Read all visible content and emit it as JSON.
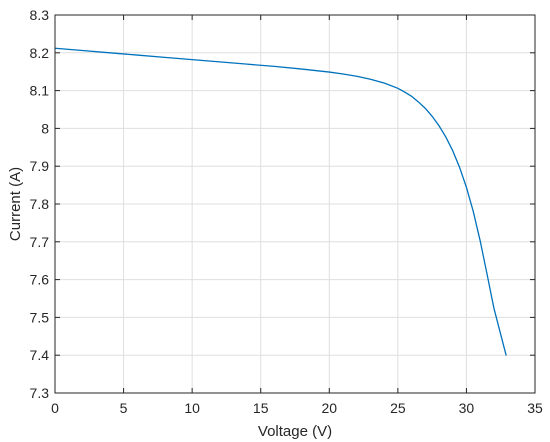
{
  "chart_data": {
    "type": "line",
    "title": "",
    "xlabel": "Voltage (V)",
    "ylabel": "Current (A)",
    "xlim": [
      0,
      35
    ],
    "ylim": [
      7.3,
      8.3
    ],
    "xticks": [
      0,
      5,
      10,
      15,
      20,
      25,
      30,
      35
    ],
    "yticks": [
      7.3,
      7.4,
      7.5,
      7.6,
      7.7,
      7.8,
      7.9,
      8,
      8.1,
      8.2,
      8.3
    ],
    "xtick_labels": [
      "0",
      "5",
      "10",
      "15",
      "20",
      "25",
      "30",
      "35"
    ],
    "ytick_labels": [
      "7.3",
      "7.4",
      "7.5",
      "7.6",
      "7.7",
      "7.8",
      "7.9",
      "8",
      "8.1",
      "8.2",
      "8.3"
    ],
    "grid": true,
    "line_color": "#0072bd",
    "series": [
      {
        "x": [
          0,
          2,
          4,
          6,
          8,
          10,
          12,
          14,
          16,
          18,
          20,
          21,
          22,
          23,
          24,
          25,
          25.5,
          26,
          26.5,
          27,
          27.5,
          28,
          28.5,
          29,
          29.5,
          30,
          30.5,
          31,
          31.5,
          32,
          32.5,
          32.9
        ],
        "y": [
          8.212,
          8.206,
          8.2,
          8.194,
          8.188,
          8.182,
          8.176,
          8.17,
          8.164,
          8.157,
          8.149,
          8.144,
          8.138,
          8.13,
          8.12,
          8.106,
          8.096,
          8.085,
          8.07,
          8.053,
          8.032,
          8.007,
          7.977,
          7.941,
          7.897,
          7.844,
          7.78,
          7.703,
          7.615,
          7.525,
          7.455,
          7.399
        ]
      }
    ]
  }
}
